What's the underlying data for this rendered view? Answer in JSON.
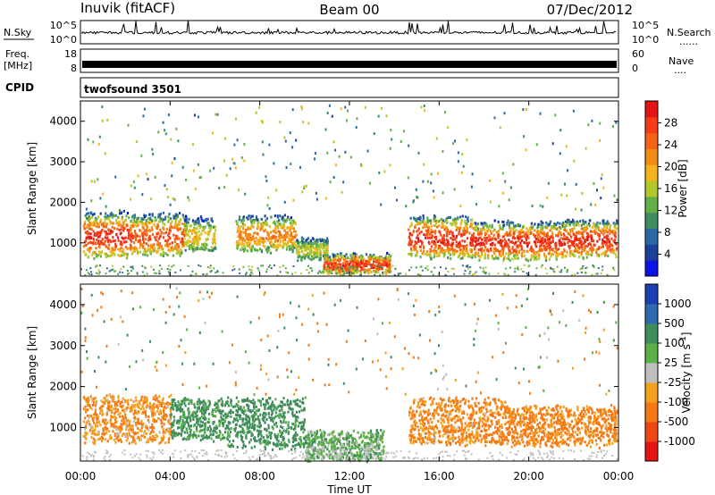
{
  "header": {
    "station": "Inuvik (fitACF)",
    "beam": "Beam 00",
    "date": "07/Dec/2012"
  },
  "nsky_panel": {
    "label": "N.Sky",
    "left_ticks": [
      "10^5",
      "10^0"
    ],
    "right_ticks": [
      "10^5",
      "10^0"
    ],
    "right_label": "N.Search",
    "right_label_marker": "......"
  },
  "freq_panel": {
    "label_line1": "Freq.",
    "label_line2": "[MHz]",
    "left_ticks": [
      "18",
      "8"
    ],
    "right_ticks": [
      "60",
      "0"
    ],
    "right_label": "Nave",
    "right_label_marker": "...."
  },
  "cpid_panel": {
    "label": "CPID",
    "text": "twofsound 3501"
  },
  "colors": {
    "power_scale": [
      "#0a14e6",
      "#1c3f9a",
      "#2c68a6",
      "#3f8c60",
      "#62b046",
      "#b4c82c",
      "#f5b41c",
      "#f58c14",
      "#f56414",
      "#f53c14",
      "#e61414"
    ],
    "velocity_scale": [
      "#1c40b4",
      "#2c6cae",
      "#3f8c5c",
      "#5cb048",
      "#c0c0c0",
      "#f5a01e",
      "#f57814",
      "#f04614",
      "#e61414"
    ]
  },
  "chart_data": [
    {
      "type": "heatmap",
      "panel": "power",
      "xlabel": "",
      "ylabel": "Slant Range [km]",
      "ylim": [
        180,
        4500
      ],
      "y_ticks": [
        1000,
        2000,
        3000,
        4000
      ],
      "x_ticks": [
        "00:00",
        "04:00",
        "08:00",
        "12:00",
        "16:00",
        "20:00",
        "00:00"
      ],
      "colorbar_label": "Power [dB]",
      "colorbar_ticks": [
        "4",
        "8",
        "12",
        "16",
        "20",
        "24",
        "28"
      ],
      "clim": [
        0,
        30
      ],
      "bands": [
        {
          "start_h": 0.1,
          "end_h": 2.2,
          "lower_km": 650,
          "upper_km": 1750,
          "peak_db": 28
        },
        {
          "start_h": 2.2,
          "end_h": 4.6,
          "lower_km": 700,
          "upper_km": 1700,
          "peak_db": 26
        },
        {
          "start_h": 4.6,
          "end_h": 6.0,
          "lower_km": 800,
          "upper_km": 1600,
          "peak_db": 18
        },
        {
          "start_h": 6.9,
          "end_h": 9.6,
          "lower_km": 800,
          "upper_km": 1650,
          "peak_db": 22
        },
        {
          "start_h": 9.6,
          "end_h": 11.0,
          "lower_km": 600,
          "upper_km": 1100,
          "peak_db": 16
        },
        {
          "start_h": 10.8,
          "end_h": 13.8,
          "lower_km": 250,
          "upper_km": 700,
          "peak_db": 28
        },
        {
          "start_h": 14.6,
          "end_h": 17.5,
          "lower_km": 650,
          "upper_km": 1650,
          "peak_db": 28
        },
        {
          "start_h": 17.5,
          "end_h": 21.5,
          "lower_km": 600,
          "upper_km": 1500,
          "peak_db": 28
        },
        {
          "start_h": 21.5,
          "end_h": 23.9,
          "lower_km": 650,
          "upper_km": 1550,
          "peak_db": 28
        }
      ]
    },
    {
      "type": "heatmap",
      "panel": "velocity",
      "xlabel": "Time UT",
      "ylabel": "Slant Range [km]",
      "ylim": [
        180,
        4500
      ],
      "y_ticks": [
        1000,
        2000,
        3000,
        4000
      ],
      "x_ticks": [
        "00:00",
        "04:00",
        "08:00",
        "12:00",
        "16:00",
        "20:00",
        "00:00"
      ],
      "colorbar_label": "Velocity [m s^-1]",
      "colorbar_ticks": [
        "1000",
        "500",
        "100",
        "25",
        "-25",
        "-100",
        "-500",
        "-1000"
      ],
      "clim": [
        -1000,
        1000
      ],
      "bands": [
        {
          "start_h": 0.1,
          "end_h": 4.0,
          "lower_km": 650,
          "upper_km": 1750,
          "velocity_ms": -100
        },
        {
          "start_h": 4.0,
          "end_h": 6.5,
          "lower_km": 700,
          "upper_km": 1700,
          "velocity_ms": 150
        },
        {
          "start_h": 6.5,
          "end_h": 10.0,
          "lower_km": 500,
          "upper_km": 1700,
          "velocity_ms": 200
        },
        {
          "start_h": 10.0,
          "end_h": 13.5,
          "lower_km": 200,
          "upper_km": 900,
          "velocity_ms": 60
        },
        {
          "start_h": 14.6,
          "end_h": 19.0,
          "lower_km": 600,
          "upper_km": 1700,
          "velocity_ms": -120
        },
        {
          "start_h": 19.0,
          "end_h": 23.9,
          "lower_km": 550,
          "upper_km": 1500,
          "velocity_ms": -150
        }
      ]
    }
  ]
}
